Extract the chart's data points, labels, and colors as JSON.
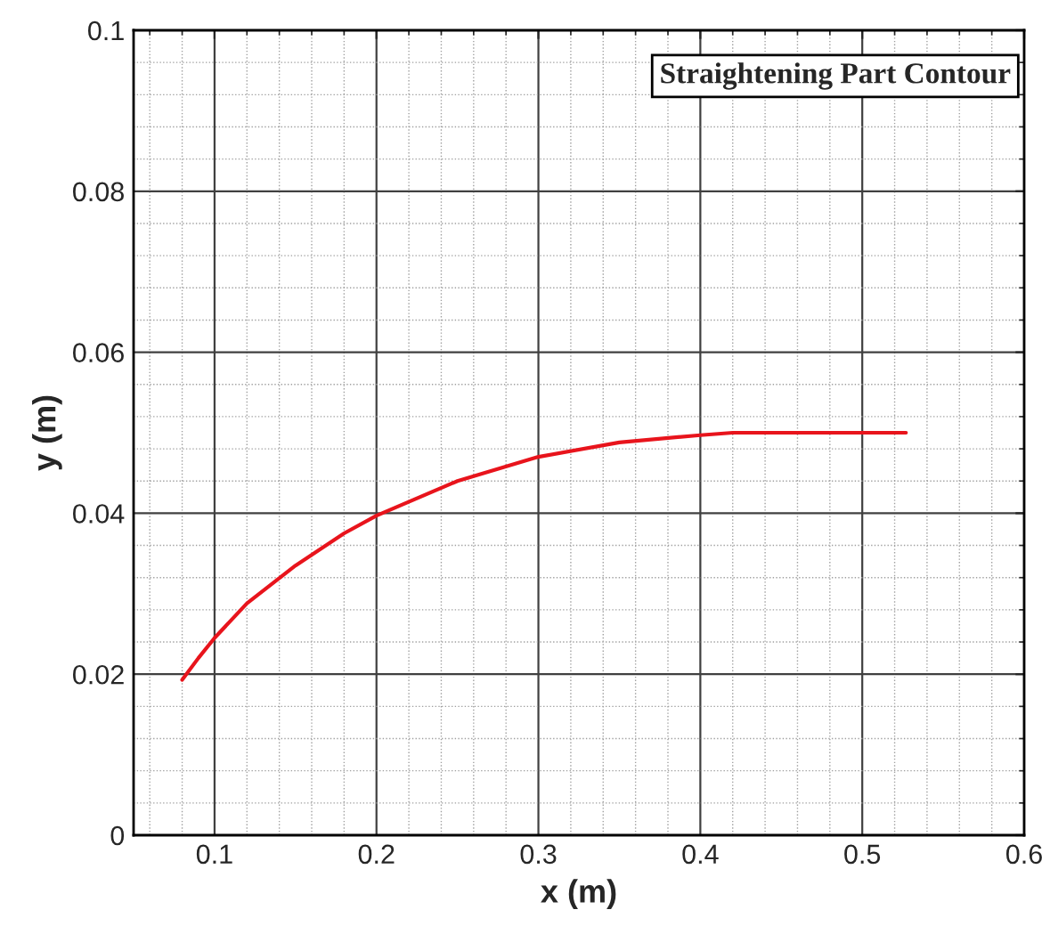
{
  "chart_data": {
    "type": "line",
    "title": "Straightening Part Contour",
    "xlabel": "x (m)",
    "ylabel": "y (m)",
    "series": [
      {
        "color": "#e8141c",
        "x": [
          0.08,
          0.09,
          0.1,
          0.12,
          0.15,
          0.18,
          0.2,
          0.25,
          0.3,
          0.35,
          0.4,
          0.42,
          0.45,
          0.5,
          0.527
        ],
        "values": [
          0.0193,
          0.022,
          0.0245,
          0.0288,
          0.0335,
          0.0375,
          0.0397,
          0.044,
          0.047,
          0.0488,
          0.0497,
          0.05,
          0.05,
          0.05,
          0.05
        ]
      }
    ],
    "xlim": [
      0.05,
      0.6
    ],
    "ylim": [
      0,
      0.1
    ],
    "xticks": [
      0.1,
      0.2,
      0.3,
      0.4,
      0.5,
      0.6
    ],
    "yticks": [
      0,
      0.02,
      0.04,
      0.06,
      0.08,
      0.1
    ],
    "grid": true,
    "legend": false
  }
}
